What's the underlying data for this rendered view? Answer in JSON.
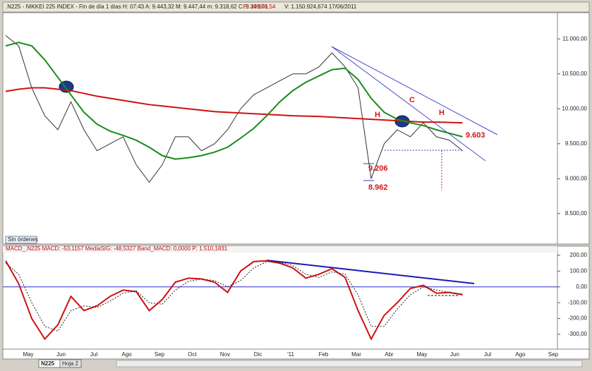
{
  "header": {
    "text1": ".N225 - NIKKEI 225 INDEX - Fin de día 1 días  H: 07:43  A: 9.443,32  M: 9.447,44  m: 9.318,62  C: 9.349,71",
    "p": "P: 10.900,54",
    "text2": "V: 1.150.924,674  17/06/2011"
  },
  "orders_button": "Sin órdenes",
  "x_axis_labels": [
    "May",
    "Jun",
    "Jul",
    "Ago",
    "Sep",
    "Oct",
    "Nov",
    "Dic",
    "'11",
    "Feb",
    "Mar",
    "Abr",
    "May",
    "Jun",
    "Jul",
    "Ago",
    "Sep"
  ],
  "tabs": [
    "N225",
    "Hoja 2"
  ],
  "chart_data": [
    {
      "type": "line",
      "ylim": [
        8065,
        11375
      ],
      "yticks": [
        {
          "value": 11000,
          "label": "11.000,00"
        },
        {
          "value": 10500,
          "label": "10.500,00"
        },
        {
          "value": 10000,
          "label": "10.000,00"
        },
        {
          "value": 9500,
          "label": "9.500,00"
        },
        {
          "value": 9000,
          "label": "9.000,00"
        },
        {
          "value": 8500,
          "label": "8.500,00"
        }
      ],
      "grid": false,
      "series": [
        {
          "color": "#333333",
          "values": [
            11050,
            10900,
            10300,
            9900,
            9700,
            10100,
            9700,
            9400,
            9500,
            9600,
            9200,
            8950,
            9200,
            9600,
            9600,
            9400,
            9500,
            9700,
            10000,
            10200,
            10300,
            10400,
            10500,
            10500,
            10600,
            10800,
            10600,
            10300,
            9000,
            9500,
            9700,
            9600,
            9800,
            9600,
            9550,
            9400
          ]
        },
        {
          "color": "#cc1111",
          "values": [
            10250,
            10280,
            10300,
            10300,
            10280,
            10260,
            10220,
            10180,
            10150,
            10120,
            10090,
            10060,
            10040,
            10020,
            10000,
            9980,
            9960,
            9950,
            9940,
            9930,
            9920,
            9910,
            9900,
            9895,
            9890,
            9880,
            9870,
            9860,
            9850,
            9840,
            9830,
            9820,
            9810,
            9810,
            9805,
            9800
          ]
        },
        {
          "color": "#1a8a1a",
          "values": [
            10900,
            10950,
            10900,
            10700,
            10450,
            10200,
            9950,
            9780,
            9680,
            9620,
            9550,
            9450,
            9330,
            9280,
            9300,
            9330,
            9380,
            9450,
            9580,
            9720,
            9900,
            10100,
            10260,
            10380,
            10470,
            10560,
            10580,
            10420,
            10150,
            9950,
            9850,
            9800,
            9760,
            9700,
            9650,
            9600
          ]
        }
      ],
      "annotations": [
        "H",
        "C",
        "H",
        "9.603",
        "9.206",
        "8.962"
      ]
    },
    {
      "type": "line",
      "subtitle": "MACD_.N225 MACD: -53,1157 MediaSIG: -48,5327 Band_MACD: 0,0000 P: 1.510,1831",
      "ylim": [
        -394,
        231
      ],
      "yticks": [
        {
          "value": 200,
          "label": "200,00"
        },
        {
          "value": 100,
          "label": "100,00"
        },
        {
          "value": 0,
          "label": "0,00"
        },
        {
          "value": -100,
          "label": "-100,00"
        },
        {
          "value": -200,
          "label": "-200,00"
        },
        {
          "value": -300,
          "label": "-300,00"
        }
      ],
      "grid": false,
      "series": [
        {
          "color": "#d01010",
          "values": [
            165,
            20,
            -200,
            -330,
            -240,
            -60,
            -150,
            -120,
            -60,
            -20,
            -30,
            -150,
            -80,
            30,
            55,
            50,
            30,
            -35,
            100,
            160,
            165,
            150,
            120,
            55,
            80,
            115,
            60,
            -150,
            -330,
            -180,
            -100,
            -10,
            10,
            -40,
            -35,
            -50
          ]
        },
        {
          "color": "#222222",
          "dashed": true,
          "values": [
            150,
            80,
            -100,
            -250,
            -280,
            -150,
            -120,
            -130,
            -90,
            -40,
            -25,
            -100,
            -110,
            -20,
            35,
            50,
            40,
            0,
            40,
            120,
            160,
            155,
            135,
            80,
            60,
            95,
            80,
            -50,
            -250,
            -250,
            -140,
            -50,
            0,
            -20,
            -35,
            -45
          ]
        }
      ]
    }
  ]
}
